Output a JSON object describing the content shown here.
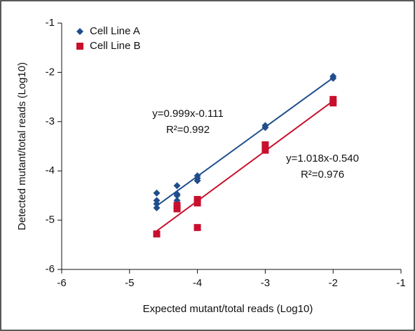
{
  "chart_data": {
    "type": "scatter",
    "xlabel": "Expected mutant/total reads (Log10)",
    "ylabel": "Detected mutant/total reads (Log10)",
    "xlim": [
      -6,
      -1
    ],
    "xticks": [
      -6,
      -5,
      -4,
      -3,
      -2,
      -1
    ],
    "ylim": [
      -6,
      -1
    ],
    "yticks": [
      -6,
      -5,
      -4,
      -3,
      -2,
      -1
    ],
    "legend": "upper left",
    "series": [
      {
        "name": "Cell Line A",
        "color": "#1f4e8c",
        "marker": "diamond",
        "x": [
          -4.6,
          -4.6,
          -4.6,
          -4.6,
          -4.3,
          -4.3,
          -4.3,
          -4.3,
          -4,
          -4,
          -4,
          -3,
          -3,
          -2,
          -2
        ],
        "values": [
          -4.45,
          -4.6,
          -4.67,
          -4.75,
          -4.3,
          -4.47,
          -4.5,
          -4.6,
          -4.1,
          -4.15,
          -4.2,
          -3.08,
          -3.12,
          -2.08,
          -2.12
        ],
        "trendline": {
          "x": [
            -4.6,
            -2
          ],
          "values": [
            -4.71,
            -2.11
          ]
        },
        "equation": "y=0.999x-0.111",
        "r2": "R²=0.992"
      },
      {
        "name": "Cell Line B",
        "color": "#c8102e",
        "marker": "square",
        "x": [
          -4.6,
          -4.3,
          -4.3,
          -4,
          -4,
          -4,
          -3,
          -3,
          -2,
          -2
        ],
        "values": [
          -5.28,
          -4.7,
          -4.77,
          -4.58,
          -4.65,
          -5.15,
          -3.47,
          -3.58,
          -2.55,
          -2.62
        ],
        "trendline": {
          "x": [
            -4.6,
            -2
          ],
          "values": [
            -5.22,
            -2.58
          ]
        },
        "equation": "y=1.018x-0.540",
        "r2": "R²=0.976"
      }
    ]
  }
}
